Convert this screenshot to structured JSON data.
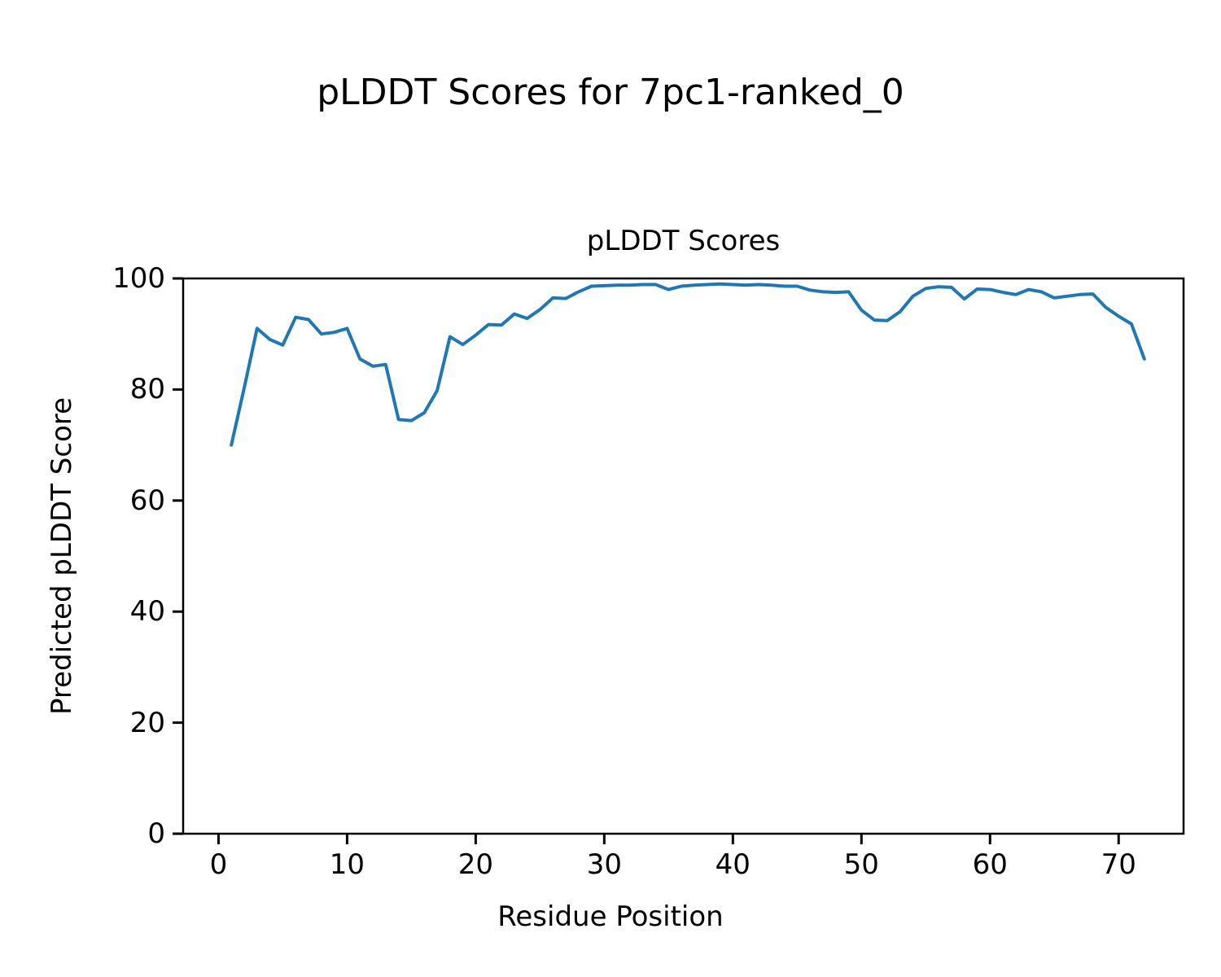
{
  "figure_title": "pLDDT Scores for 7pc1-ranked_0",
  "chart_data": {
    "type": "line",
    "title": "pLDDT Scores",
    "xlabel": "Residue Position",
    "ylabel": "Predicted pLDDT Score",
    "xlim": [
      -2.75,
      75.05
    ],
    "ylim": [
      0,
      100
    ],
    "x_ticks": [
      0,
      10,
      20,
      30,
      40,
      50,
      60,
      70
    ],
    "y_ticks": [
      0,
      20,
      40,
      60,
      80,
      100
    ],
    "grid": false,
    "legend": false,
    "line_color": "#1f77b4",
    "axis_color": "#000000",
    "x": [
      1,
      2,
      3,
      4,
      5,
      6,
      7,
      8,
      9,
      10,
      11,
      12,
      13,
      14,
      15,
      16,
      17,
      18,
      19,
      20,
      21,
      22,
      23,
      24,
      25,
      26,
      27,
      28,
      29,
      30,
      31,
      32,
      33,
      34,
      35,
      36,
      37,
      38,
      39,
      40,
      41,
      42,
      43,
      44,
      45,
      46,
      47,
      48,
      49,
      50,
      51,
      52,
      53,
      54,
      55,
      56,
      57,
      58,
      59,
      60,
      61,
      62,
      63,
      64,
      65,
      66,
      67,
      68,
      69,
      70,
      71,
      72
    ],
    "series": [
      {
        "name": "pLDDT",
        "values": [
          70.0,
          80.3,
          91.0,
          89.0,
          88.0,
          93.0,
          92.6,
          90.0,
          90.3,
          91.0,
          85.5,
          84.2,
          84.5,
          74.6,
          74.4,
          75.8,
          79.8,
          89.5,
          88.1,
          89.8,
          91.7,
          91.6,
          93.6,
          92.8,
          94.4,
          96.5,
          96.4,
          97.6,
          98.6,
          98.7,
          98.8,
          98.8,
          98.9,
          98.9,
          98.0,
          98.6,
          98.8,
          98.9,
          99.0,
          98.9,
          98.8,
          98.9,
          98.8,
          98.6,
          98.6,
          97.9,
          97.6,
          97.5,
          97.6,
          94.3,
          92.5,
          92.4,
          94.0,
          96.8,
          98.2,
          98.5,
          98.4,
          96.3,
          98.1,
          98.0,
          97.5,
          97.1,
          98.0,
          97.6,
          96.5,
          96.8,
          97.1,
          97.2,
          94.8,
          93.2,
          91.8,
          85.5
        ]
      }
    ]
  }
}
